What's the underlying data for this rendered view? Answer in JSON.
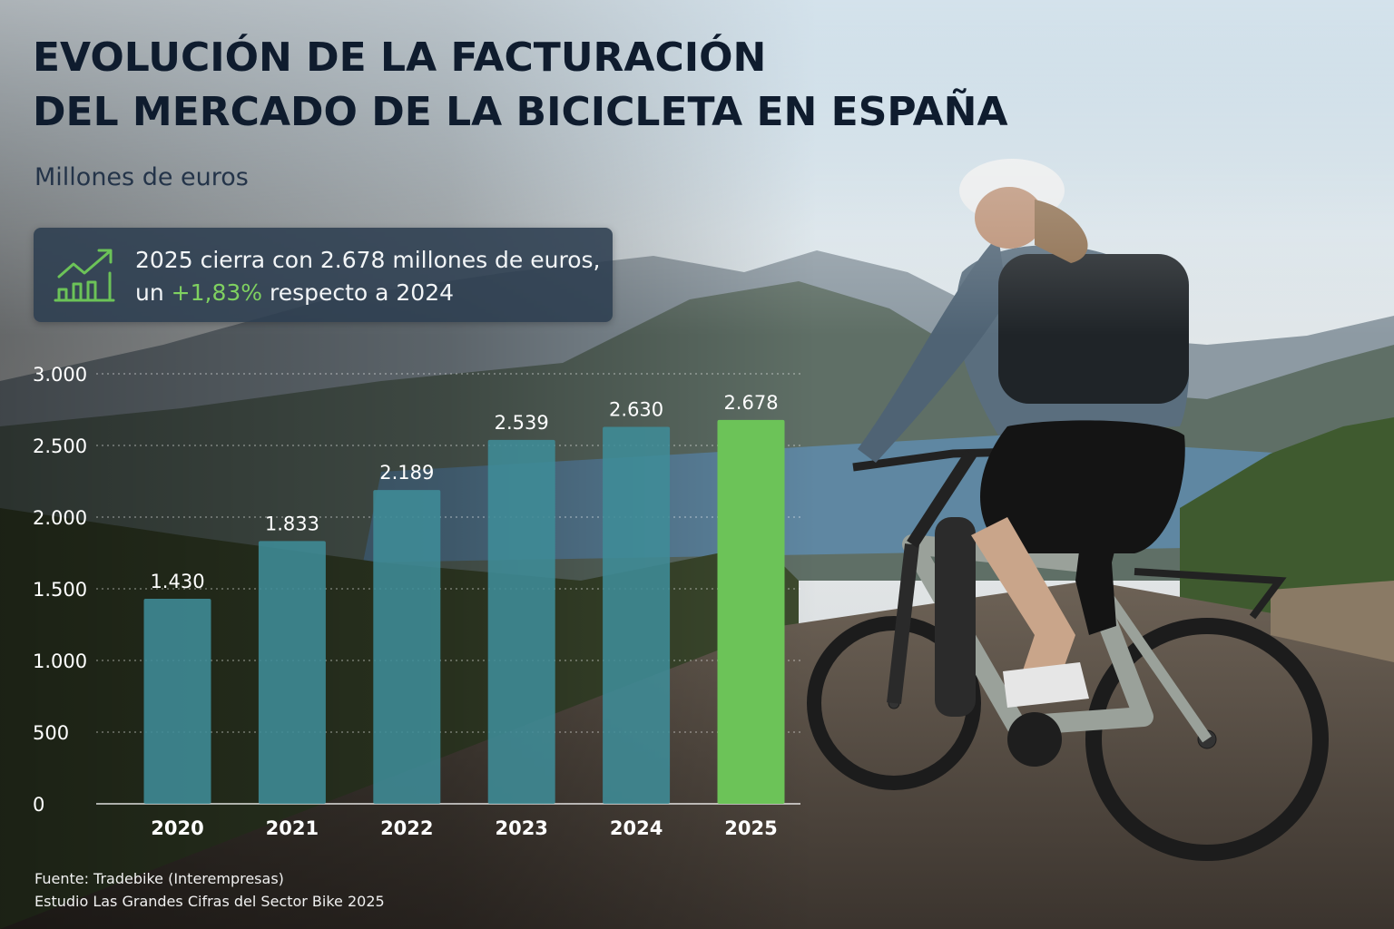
{
  "title_lines": [
    "EVOLUCIÓN DE LA FACTURACIÓN",
    "DEL MERCADO DE LA BICICLETA EN ESPAÑA"
  ],
  "subtitle": "Millones de euros",
  "callout": {
    "icon": "growth-chart-icon",
    "line1": "2025 cierra con 2.678 millones de euros,",
    "line2_prefix": "un ",
    "line2_highlight": "+1,83%",
    "line2_suffix": " respecto a 2024"
  },
  "chart_data": {
    "type": "bar",
    "title": "EVOLUCIÓN DE LA FACTURACIÓN DEL MERCADO DE LA BICICLETA EN ESPAÑA",
    "ylabel": "Millones de euros",
    "xlabel": "",
    "categories": [
      "2020",
      "2021",
      "2022",
      "2023",
      "2024",
      "2025"
    ],
    "values": [
      1430,
      1833,
      2189,
      2539,
      2630,
      2678
    ],
    "value_labels": [
      "1.430",
      "1.833",
      "2.189",
      "2.539",
      "2.630",
      "2.678"
    ],
    "ylim": [
      0,
      3000
    ],
    "yticks": [
      0,
      500,
      1000,
      1500,
      2000,
      2500,
      3000
    ],
    "ytick_labels": [
      "0",
      "500",
      "1.000",
      "1.500",
      "2.000",
      "2.500",
      "3.000"
    ],
    "grid": true,
    "highlight_category": "2025"
  },
  "colors": {
    "bar": "#3f8c97",
    "bar_highlight": "#6cc358",
    "accent_green": "#7fd160",
    "title": "#0f1c2e"
  },
  "source_lines": [
    "Fuente: Tradebike (Interempresas)",
    "Estudio Las Grandes Cifras del Sector Bike 2025"
  ]
}
